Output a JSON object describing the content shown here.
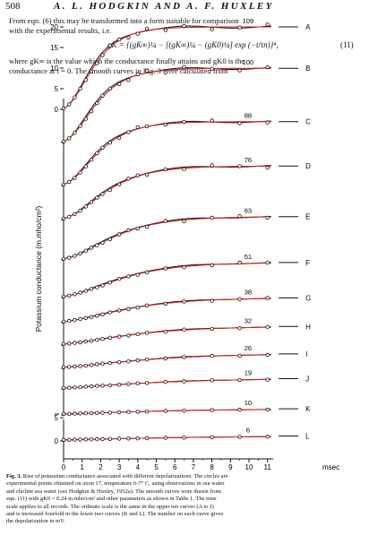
{
  "header": {
    "page_number": "508",
    "authors": "A. L. HODGKIN AND A. F. HUXLEY"
  },
  "text": {
    "line1": "From eqn. (6) this may be transformed into a form suitable for comparison",
    "line2": "with the experimental results, i.e.",
    "equation": "gK = {(gK∞)¼ − [(gK∞)¼ − (gK0)¼] exp (−t/τn)}⁴,",
    "equation_number": "(11)",
    "line3": "where gK∞ is the value which the conductance finally attains and gK0 is the",
    "line4": "conductance at t = 0. The smooth curves in Fig. 3 were calculated from"
  },
  "chart_data": {
    "type": "line",
    "ylabel": "Potassium conductance (m.mho/cm²)",
    "xlabel": "msec",
    "xlim": [
      0,
      11
    ],
    "x_ticks": [
      "0",
      "1",
      "2",
      "3",
      "4",
      "5",
      "6",
      "7",
      "8",
      "9",
      "10",
      "11"
    ],
    "y_ticks": [
      "0",
      "5",
      "10",
      "15",
      "20"
    ],
    "lower_y_ticks": [
      "5",
      "0"
    ],
    "series": [
      {
        "label": "A",
        "depolarization": "109",
        "g_inf": 20.0,
        "tau": 1.1
      },
      {
        "label": "B",
        "depolarization": "100",
        "g_inf": 18.0,
        "tau": 1.2
      },
      {
        "label": "C",
        "depolarization": "88",
        "g_inf": 15.5,
        "tau": 1.3
      },
      {
        "label": "D",
        "depolarization": "76",
        "g_inf": 13.0,
        "tau": 1.6
      },
      {
        "label": "E",
        "depolarization": "63",
        "g_inf": 10.5,
        "tau": 1.9
      },
      {
        "label": "F",
        "depolarization": "51",
        "g_inf": 8.5,
        "tau": 2.2
      },
      {
        "label": "G",
        "depolarization": "38",
        "g_inf": 6.0,
        "tau": 2.5
      },
      {
        "label": "H",
        "depolarization": "32",
        "g_inf": 4.5,
        "tau": 2.8
      },
      {
        "label": "I",
        "depolarization": "26",
        "g_inf": 3.5,
        "tau": 3.2
      },
      {
        "label": "J",
        "depolarization": "19",
        "g_inf": 2.5,
        "tau": 3.6
      },
      {
        "label": "K",
        "depolarization": "10",
        "g_inf": 1.5,
        "tau": 4.5
      },
      {
        "label": "L",
        "depolarization": "6",
        "g_inf": 1.2,
        "tau": 5.0
      }
    ],
    "colors": {
      "fit": "#d42020",
      "curve": "#111111",
      "points": "#111111"
    }
  },
  "caption": {
    "label": "Fig. 3.",
    "text1": "Rise of potassium conductance associated with different depolarizations. The circles are",
    "text2": "experimental points obtained on axon 17, temperature 6-7° C, using observations in sea water",
    "text3": "and choline sea water (see Hodgkin & Huxley, 1952a). The smooth curves were drawn from",
    "text4": "eqn. (11) with gK0 = 0.24 m.mho/cm² and other parameters as shown in Table 1. The time",
    "text5": "scale applies to all records. The ordinate scale is the same in the upper ten curves (A to J)",
    "text6": "and is increased fourfold in the lower two curves (K and L). The number on each curve gives",
    "text7": "the depolarization in mV."
  }
}
